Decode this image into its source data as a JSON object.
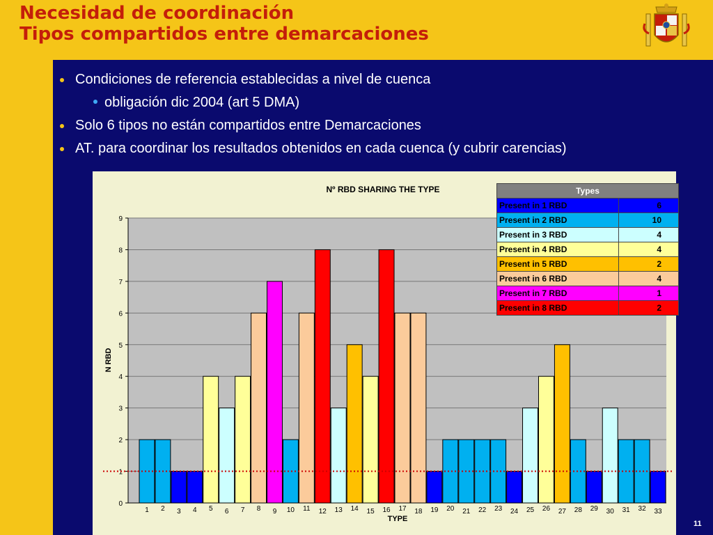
{
  "slide": {
    "title_line1": "Necesidad de coordinación",
    "title_line2": "Tipos compartidos entre demarcaciones",
    "page_number": "11"
  },
  "bullets": [
    {
      "text": "Condiciones de referencia establecidas a nivel de cuenca",
      "level": 1
    },
    {
      "text": "obligación dic 2004 (art 5 DMA)",
      "level": 2
    },
    {
      "text": "Solo 6 tipos no están compartidos entre Demarcaciones",
      "level": 1
    },
    {
      "text": "AT. para coordinar los resultados obtenidos en cada cuenca (y cubrir carencias)",
      "level": 1
    }
  ],
  "legend": {
    "header": "Types",
    "rows": [
      {
        "label": "Present in 1 RBD",
        "value": "6",
        "color": "#0000FF",
        "text_color": "#000000"
      },
      {
        "label": "Present in 2 RBD",
        "value": "10",
        "color": "#00B0F0",
        "text_color": "#000000"
      },
      {
        "label": "Present in 3 RBD",
        "value": "4",
        "color": "#CCFFFF",
        "text_color": "#000000"
      },
      {
        "label": "Present in 4 RBD",
        "value": "4",
        "color": "#FFFF99",
        "text_color": "#000000"
      },
      {
        "label": "Present in 5 RBD",
        "value": "2",
        "color": "#FFC000",
        "text_color": "#000000"
      },
      {
        "label": "Present in 6 RBD",
        "value": "4",
        "color": "#FBCB9B",
        "text_color": "#000000"
      },
      {
        "label": "Present in 7 RBD",
        "value": "1",
        "color": "#FF00FF",
        "text_color": "#000000"
      },
      {
        "label": "Present in 8 RBD",
        "value": "2",
        "color": "#FF0000",
        "text_color": "#000000"
      }
    ]
  },
  "chart_data": {
    "type": "bar",
    "title": "Nº RBD SHARING THE TYPE",
    "xlabel": "TYPE",
    "ylabel": "N RBD",
    "ylim": [
      0,
      9
    ],
    "yticks": [
      0,
      1,
      2,
      3,
      4,
      5,
      6,
      7,
      8,
      9
    ],
    "categories": [
      "1",
      "2",
      "3",
      "4",
      "5",
      "6",
      "7",
      "8",
      "9",
      "10",
      "11",
      "12",
      "13",
      "14",
      "15",
      "16",
      "17",
      "18",
      "19",
      "20",
      "21",
      "22",
      "23",
      "24",
      "25",
      "26",
      "27",
      "28",
      "29",
      "30",
      "31",
      "32",
      "33"
    ],
    "values": [
      2,
      2,
      1,
      1,
      4,
      3,
      4,
      6,
      7,
      2,
      6,
      8,
      3,
      5,
      4,
      8,
      6,
      6,
      1,
      2,
      2,
      2,
      2,
      1,
      3,
      4,
      5,
      2,
      1,
      3,
      2,
      2,
      1
    ],
    "color_by_value": {
      "1": "#0000FF",
      "2": "#00B0F0",
      "3": "#CCFFFF",
      "4": "#FFFF99",
      "5": "#FFC000",
      "6": "#FBCB9B",
      "7": "#FF00FF",
      "8": "#FF0000"
    },
    "reference_line": 1,
    "reference_line_color": "#CC0000",
    "plot_background": "#C0C0C0",
    "grid": true
  }
}
